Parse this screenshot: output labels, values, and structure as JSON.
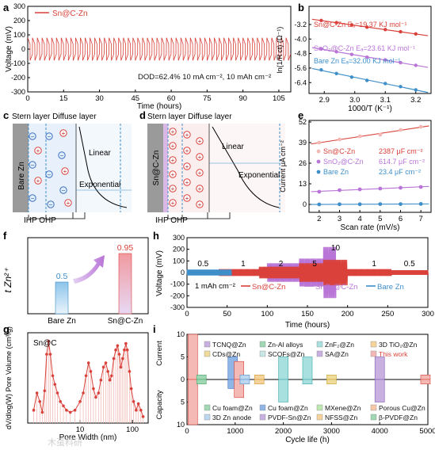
{
  "panel_letters": [
    "a",
    "b",
    "c",
    "d",
    "e",
    "f",
    "g",
    "h",
    "i"
  ],
  "colors": {
    "red": "#d9413a",
    "purple": "#b874d6",
    "blue": "#3d8ec9",
    "pink": "#f4b9b4",
    "gray": "#8f8f8f"
  },
  "chart_data": [
    {
      "panel": "a",
      "type": "line",
      "xlabel": "Time (hours)",
      "ylabel": "Voltage (mV)",
      "xlim": [
        0,
        110
      ],
      "ylim": [
        -300,
        300
      ],
      "xticks": [
        0,
        15,
        30,
        45,
        60,
        75,
        90,
        105
      ],
      "yticks": [
        -300,
        -200,
        -100,
        0,
        100,
        200,
        300
      ],
      "series": [
        {
          "name": "Sn@C-Zn",
          "color": "#d9413a",
          "upper_mV": 80,
          "lower_mV": -80
        }
      ],
      "annotation": "DOD=62.4%    10 mA cm⁻², 10 mAh cm⁻²"
    },
    {
      "panel": "b",
      "type": "scatter",
      "xlabel": "1000/T (K⁻¹)",
      "ylabel": "ln(1/R ct) (Ω⁻¹)",
      "xlim": [
        2.85,
        3.25
      ],
      "ylim": [
        -7.0,
        -2.2
      ],
      "xticks": [
        2.9,
        3.0,
        3.1,
        3.2
      ],
      "yticks": [
        -6.4,
        -5.6,
        -4.8,
        -4.0,
        -3.2
      ],
      "series": [
        {
          "name": "Sn@C-Zn",
          "label": "Sn@C-Zn Eₐ=19.37 KJ mol⁻¹",
          "color": "#d9413a",
          "points": [
            [
              2.89,
              -2.98
            ],
            [
              2.94,
              -3.1
            ],
            [
              2.99,
              -3.22
            ],
            [
              3.04,
              -3.35
            ],
            [
              3.1,
              -3.48
            ],
            [
              3.15,
              -3.6
            ],
            [
              3.2,
              -3.72
            ]
          ]
        },
        {
          "name": "SnO₂@C-Zn",
          "label": "SnO₂@C-Zn Eₐ=23.61 KJ mol⁻¹",
          "color": "#b874d6",
          "points": [
            [
              2.89,
              -4.55
            ],
            [
              2.94,
              -4.7
            ],
            [
              2.99,
              -4.85
            ],
            [
              3.04,
              -5.0
            ],
            [
              3.1,
              -5.15
            ],
            [
              3.15,
              -5.3
            ],
            [
              3.2,
              -5.45
            ]
          ]
        },
        {
          "name": "Bare Zn",
          "label": "Bare Zn Eₐ=32.00 KJ mol⁻¹",
          "color": "#3d8ec9",
          "points": [
            [
              2.89,
              -5.7
            ],
            [
              2.94,
              -5.9
            ],
            [
              2.99,
              -6.1
            ],
            [
              3.04,
              -6.28
            ],
            [
              3.1,
              -6.45
            ],
            [
              3.15,
              -6.62
            ],
            [
              3.2,
              -6.8
            ]
          ]
        }
      ]
    },
    {
      "panel": "e",
      "type": "scatter",
      "xlabel": "Scan rate (mV/s)",
      "ylabel": "Current μA cm⁻²",
      "xlim": [
        1.5,
        7.5
      ],
      "ylim": [
        -5,
        53
      ],
      "xticks": [
        2,
        3,
        4,
        5,
        6,
        7
      ],
      "yticks": [
        0,
        13,
        26,
        39,
        52
      ],
      "series": [
        {
          "name": "Sn@C-Zn",
          "cap": "2387 μF cm⁻²",
          "color": "#f4b9b4",
          "points": [
            [
              2,
              39
            ],
            [
              3,
              41
            ],
            [
              4,
              43
            ],
            [
              5,
              44
            ],
            [
              6,
              47
            ],
            [
              7,
              49
            ]
          ]
        },
        {
          "name": "SnO₂@C-Zn",
          "cap": "614.7 μF cm⁻²",
          "color": "#b874d6",
          "points": [
            [
              2,
              8
            ],
            [
              3,
              9
            ],
            [
              4,
              9.5
            ],
            [
              5,
              10
            ],
            [
              6,
              10.5
            ],
            [
              7,
              11
            ]
          ]
        },
        {
          "name": "Bare Zn",
          "cap": "23.4 μF cm⁻²",
          "color": "#3d8ec9",
          "points": [
            [
              2,
              0
            ],
            [
              3,
              0.1
            ],
            [
              4,
              0.1
            ],
            [
              5,
              0.2
            ],
            [
              6,
              0.2
            ],
            [
              7,
              0.3
            ]
          ]
        }
      ]
    },
    {
      "panel": "f",
      "type": "bar",
      "ylabel": "t Zn²⁺",
      "categories": [
        "Bare Zn",
        "Sn@C-Zn"
      ],
      "values": [
        0.5,
        0.95
      ],
      "labels": [
        "0.5",
        "0.95"
      ],
      "ylim": [
        0,
        1.2
      ]
    },
    {
      "panel": "g",
      "type": "line",
      "xlabel": "Pore Width (nm)",
      "ylabel": "dV/dlog(W) Pore Volume (cm³/g)",
      "xscale": "log",
      "xlim": [
        1,
        200
      ],
      "xticks": [
        10,
        100
      ],
      "series": [
        {
          "name": "Sn@C",
          "color": "#d9413a",
          "points": [
            [
              1.3,
              0.06
            ],
            [
              1.5,
              0.14
            ],
            [
              1.7,
              0.1
            ],
            [
              1.9,
              0.05
            ],
            [
              2.1,
              0.15
            ],
            [
              2.3,
              0.32
            ],
            [
              2.5,
              0.38
            ],
            [
              2.7,
              0.32
            ],
            [
              3.0,
              0.22
            ],
            [
              3.3,
              0.18
            ],
            [
              3.7,
              0.14
            ],
            [
              4.2,
              0.1
            ],
            [
              4.8,
              0.08
            ],
            [
              5.5,
              0.06
            ],
            [
              6.5,
              0.05
            ],
            [
              8,
              0.06
            ],
            [
              10,
              0.1
            ],
            [
              11.5,
              0.14
            ],
            [
              13,
              0.22
            ],
            [
              14.5,
              0.28
            ],
            [
              16,
              0.24
            ],
            [
              18,
              0.16
            ],
            [
              20,
              0.12
            ],
            [
              22.5,
              0.14
            ],
            [
              25,
              0.2
            ],
            [
              28,
              0.26
            ],
            [
              31,
              0.28
            ],
            [
              34,
              0.24
            ],
            [
              37,
              0.2
            ],
            [
              40,
              0.22
            ],
            [
              44,
              0.3
            ],
            [
              48,
              0.34
            ],
            [
              52,
              0.36
            ],
            [
              56,
              0.32
            ],
            [
              60,
              0.26
            ],
            [
              65,
              0.3
            ],
            [
              70,
              0.34
            ],
            [
              75,
              0.37
            ],
            [
              80,
              0.34
            ],
            [
              88,
              0.24
            ],
            [
              95,
              0.16
            ],
            [
              105,
              0.1
            ],
            [
              118,
              0.06
            ],
            [
              130,
              0.09
            ],
            [
              145,
              0.06
            ],
            [
              160,
              0.03
            ]
          ]
        }
      ]
    },
    {
      "panel": "h",
      "type": "line",
      "xlabel": "Time (hours)",
      "ylabel": "Voltage (mV)",
      "xlim": [
        0,
        300
      ],
      "ylim": [
        -300,
        300
      ],
      "xticks": [
        0,
        50,
        100,
        150,
        200,
        250,
        300
      ],
      "yticks": [
        -300,
        -200,
        -100,
        0,
        100,
        200,
        300
      ],
      "rate_labels": [
        {
          "x": 20,
          "text": "0.5"
        },
        {
          "x": 70,
          "text": "1"
        },
        {
          "x": 117,
          "text": "2"
        },
        {
          "x": 159,
          "text": "5"
        },
        {
          "x": 185,
          "text": "10"
        },
        {
          "x": 233,
          "text": "1"
        },
        {
          "x": 277,
          "text": "0.5"
        }
      ],
      "annotation": "1 mAh cm⁻²",
      "series": [
        {
          "name": "Sn@C-Zn",
          "color": "#d9413a",
          "amplitude_mV": [
            [
              0,
              20
            ],
            [
              40,
              20
            ],
            [
              40,
              30
            ],
            [
              90,
              30
            ],
            [
              90,
              50
            ],
            [
              140,
              50
            ],
            [
              140,
              80
            ],
            [
              170,
              80
            ],
            [
              170,
              110
            ],
            [
              200,
              110
            ],
            [
              200,
              30
            ],
            [
              255,
              30
            ],
            [
              255,
              20
            ],
            [
              300,
              20
            ]
          ]
        },
        {
          "name": "SnO₂@C-Zn",
          "color": "#b874d6",
          "amplitude_mV": [
            [
              100,
              80
            ],
            [
              140,
              80
            ],
            [
              140,
              120
            ],
            [
              170,
              120
            ],
            [
              170,
              220
            ],
            [
              185,
              220
            ]
          ]
        },
        {
          "name": "Bare Zn",
          "color": "#3d8ec9",
          "amplitude_mV": [
            [
              0,
              25
            ],
            [
              55,
              25
            ]
          ]
        }
      ]
    },
    {
      "panel": "i",
      "type": "bar",
      "xlabel": "Cycle life (h)",
      "ylabel_top": "Current",
      "ylabel_bottom": "Capacity",
      "xlim": [
        0,
        5000
      ],
      "ylim": [
        -10,
        10
      ],
      "xticks": [
        0,
        1000,
        2000,
        3000,
        4000,
        5000
      ],
      "yticks": [
        10,
        5,
        0,
        5,
        10
      ],
      "legend_top": [
        "TCNQ@Zn",
        "Zn-Al alloys",
        "ZnF₂@Zn",
        "3D TiO₂@Zn",
        "CDs@Zn",
        "SCOFs@Zn",
        "SA@Zn",
        "This work"
      ],
      "legend_bottom": [
        "Cu foam@Zn",
        "Cu foam@Zn",
        "MXene@Zn",
        "Porous Cu@Zn",
        "3D Zn anode",
        "PVDF-Sn@Zn",
        "NFSS@Zn",
        "β-PVDF@Zn"
      ],
      "bars": [
        {
          "x": 120,
          "current": 10,
          "capacity": 10,
          "color": "#f4b9b4",
          "edge": "#d9413a"
        },
        {
          "x": 300,
          "current": 1,
          "capacity": 1,
          "color": "#9fd8b2",
          "edge": "#4aa36a"
        },
        {
          "x": 950,
          "current": 5,
          "capacity": 2,
          "color": "#8fb6e6",
          "edge": "#3d6fc0"
        },
        {
          "x": 1080,
          "current": 4,
          "capacity": 4,
          "color": "#f4b9b4",
          "edge": "#d9413a"
        },
        {
          "x": 1200,
          "current": 1,
          "capacity": 1,
          "color": "#bcd7f0",
          "edge": "#5b8fc9"
        },
        {
          "x": 1500,
          "current": 1,
          "capacity": 1,
          "color": "#f6d39a",
          "edge": "#d29a3a"
        },
        {
          "x": 2000,
          "current": 5,
          "capacity": 5,
          "color": "#a8e0e0",
          "edge": "#3fa8a8"
        },
        {
          "x": 2500,
          "current": 5,
          "capacity": 1,
          "color": "#a8e0e0",
          "edge": "#3fa8a8"
        },
        {
          "x": 3000,
          "current": 1,
          "capacity": 1,
          "color": "#f0dc9a",
          "edge": "#c7a530"
        },
        {
          "x": 4000,
          "current": 5,
          "capacity": 5,
          "color": "#c8b0e0",
          "edge": "#7f5ab0"
        },
        {
          "x": 4950,
          "current": 1,
          "capacity": 1,
          "color": "#f4b9b4",
          "edge": "#d9413a"
        }
      ]
    }
  ],
  "schematics": {
    "c": {
      "top": "Stern layer Diffuse layer",
      "electrode": "Bare Zn",
      "linear": "Linear",
      "exponential": "Exponential",
      "ihp": "IHP OHP"
    },
    "d": {
      "top": "Stern layer Diffuse layer",
      "electrode": "Sn@C-Zn",
      "linear": "Linear",
      "exponential": "Exponential",
      "ihp": "IHP OHP"
    }
  },
  "watermark": "木虿科研"
}
